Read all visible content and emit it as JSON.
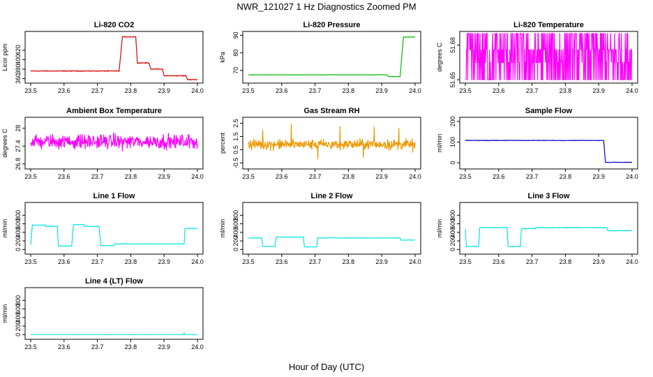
{
  "title": "NWR_121027  1 Hz Diagnostics Zoomed PM",
  "xlabel": "Hour of Day (UTC)",
  "chart_data": [
    {
      "type": "line",
      "title": "Li-820 CO2",
      "ylabel": "Licor ppm",
      "color": "#dd0000",
      "xlim": [
        23.5,
        24.0
      ],
      "ylim": [
        355,
        455
      ],
      "yticks": [
        360,
        380,
        400,
        420
      ],
      "xticks": [
        23.5,
        23.6,
        23.7,
        23.8,
        23.9,
        24.0
      ],
      "segments": [
        [
          23.5,
          23.765,
          376
        ],
        [
          23.775,
          23.815,
          448
        ],
        [
          23.82,
          23.855,
          393
        ],
        [
          23.86,
          23.895,
          380
        ],
        [
          23.9,
          23.965,
          366
        ],
        [
          23.97,
          24.0,
          358
        ]
      ],
      "noise": 1.2
    },
    {
      "type": "line",
      "title": "Li-820 Pressure",
      "ylabel": "kPa",
      "color": "#00bb00",
      "xlim": [
        23.5,
        24.0
      ],
      "ylim": [
        64,
        91
      ],
      "yticks": [
        70,
        80,
        90
      ],
      "xticks": [
        23.5,
        23.6,
        23.7,
        23.8,
        23.9,
        24.0
      ],
      "segments": [
        [
          23.5,
          23.915,
          67.5
        ],
        [
          23.92,
          23.955,
          66.5
        ],
        [
          23.965,
          24.0,
          89
        ]
      ],
      "noise": 0.15
    },
    {
      "type": "line",
      "title": "Li-820 Temperature",
      "ylabel": "degrees C",
      "color": "#ff00ff",
      "xlim": [
        23.5,
        24.0
      ],
      "ylim": [
        51.649,
        51.69
      ],
      "yticks": [
        51.65,
        51.68
      ],
      "xticks": [
        23.5,
        23.6,
        23.7,
        23.8,
        23.9,
        24.0
      ],
      "levels": [
        51.65,
        51.665,
        51.676,
        51.69
      ],
      "mode": "discrete"
    },
    {
      "type": "line",
      "title": "Ambient Box Temperature",
      "ylabel": "degrees C",
      "color": "#ff00ff",
      "xlim": [
        23.5,
        24.0
      ],
      "ylim": [
        26.7,
        28.3
      ],
      "yticks": [
        26.8,
        27.4,
        28.0
      ],
      "xticks": [
        23.5,
        23.6,
        23.7,
        23.8,
        23.9,
        24.0
      ],
      "segments": [
        [
          23.5,
          24.0,
          27.55
        ]
      ],
      "noise": 0.35
    },
    {
      "type": "line",
      "title": "Gas Stream RH",
      "ylabel": "percent",
      "color": "#ee9900",
      "xlim": [
        23.5,
        24.0
      ],
      "ylim": [
        -0.8,
        2.8
      ],
      "yticks": [
        -0.5,
        0.5,
        1.5,
        2.5
      ],
      "xticks": [
        23.5,
        23.6,
        23.7,
        23.8,
        23.9,
        24.0
      ],
      "segments": [
        [
          23.5,
          24.0,
          0.9
        ]
      ],
      "noise": 0.55
    },
    {
      "type": "line",
      "title": "Sample Flow",
      "ylabel": "ml/min",
      "color": "#0000cc",
      "xlim": [
        23.5,
        24.0
      ],
      "ylim": [
        -20,
        210
      ],
      "yticks": [
        0,
        100,
        200
      ],
      "xticks": [
        23.5,
        23.6,
        23.7,
        23.8,
        23.9,
        24.0
      ],
      "segments": [
        [
          23.5,
          23.915,
          108
        ],
        [
          23.92,
          24.0,
          2
        ]
      ],
      "noise": 2
    },
    {
      "type": "line",
      "title": "Line 1 Flow",
      "ylabel": "ml/min",
      "color": "#00e5e5",
      "xlim": [
        23.5,
        24.0
      ],
      "ylim": [
        -60,
        1050
      ],
      "yticks": [
        0,
        200,
        400,
        600,
        800
      ],
      "xticks": [
        23.5,
        23.6,
        23.7,
        23.8,
        23.9,
        24.0
      ],
      "segments": [
        [
          23.5,
          23.5,
          110
        ],
        [
          23.505,
          23.545,
          570
        ],
        [
          23.545,
          23.58,
          540
        ],
        [
          23.583,
          23.623,
          80
        ],
        [
          23.628,
          23.66,
          580
        ],
        [
          23.66,
          23.705,
          540
        ],
        [
          23.71,
          23.75,
          90
        ],
        [
          23.752,
          23.96,
          130
        ],
        [
          23.963,
          24.0,
          490
        ]
      ],
      "noise": 8
    },
    {
      "type": "line",
      "title": "Line 2 Flow",
      "ylabel": "ml/min",
      "color": "#00e5e5",
      "xlim": [
        23.5,
        24.0
      ],
      "ylim": [
        -60,
        1050
      ],
      "yticks": [
        0,
        200,
        400,
        600,
        800
      ],
      "xticks": [
        23.5,
        23.6,
        23.7,
        23.8,
        23.9,
        24.0
      ],
      "segments": [
        [
          23.5,
          23.54,
          270
        ],
        [
          23.543,
          23.58,
          70
        ],
        [
          23.583,
          23.665,
          290
        ],
        [
          23.668,
          23.705,
          60
        ],
        [
          23.708,
          23.955,
          270
        ],
        [
          23.958,
          24.0,
          220
        ]
      ],
      "noise": 8
    },
    {
      "type": "line",
      "title": "Line 3 Flow",
      "ylabel": "ml/min",
      "color": "#00e5e5",
      "xlim": [
        23.5,
        24.0
      ],
      "ylim": [
        -60,
        1050
      ],
      "yticks": [
        0,
        200,
        400,
        600,
        800
      ],
      "xticks": [
        23.5,
        23.6,
        23.7,
        23.8,
        23.9,
        24.0
      ],
      "segments": [
        [
          23.5,
          23.5,
          480
        ],
        [
          23.503,
          23.54,
          70
        ],
        [
          23.543,
          23.625,
          510
        ],
        [
          23.628,
          23.665,
          70
        ],
        [
          23.668,
          23.71,
          490
        ],
        [
          23.71,
          23.925,
          510
        ],
        [
          23.928,
          24.0,
          440
        ]
      ],
      "noise": 14
    },
    {
      "type": "line",
      "title": "Line 4 (LT) Flow",
      "ylabel": "ml/min",
      "color": "#00e5e5",
      "xlim": [
        23.5,
        24.0
      ],
      "ylim": [
        -60,
        1050
      ],
      "yticks": [
        0,
        200,
        400,
        600,
        800
      ],
      "xticks": [
        23.5,
        23.6,
        23.7,
        23.8,
        23.9,
        24.0
      ],
      "segments": [
        [
          23.5,
          24.0,
          2
        ]
      ],
      "spikes": [
        [
          23.96,
          50
        ]
      ],
      "noise": 1.5
    }
  ]
}
